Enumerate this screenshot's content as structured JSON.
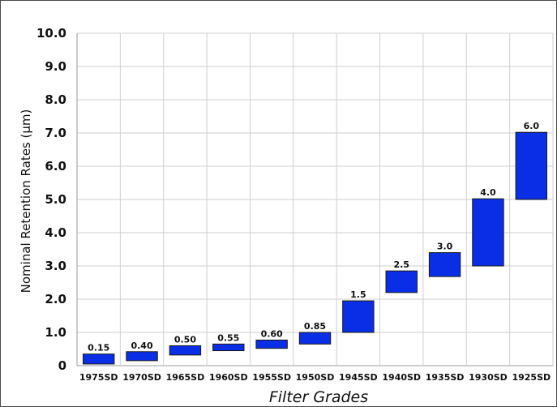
{
  "chart_data": {
    "type": "bar",
    "subtype": "floating-range",
    "title": "",
    "xlabel": "Filter Grades",
    "ylabel": "Nominal Retention Rates (µm)",
    "ylim": [
      0,
      10
    ],
    "y_ticks": [
      "0",
      "1.0",
      "2.0",
      "3.0",
      "4.0",
      "5.0",
      "6.0",
      "7.0",
      "8.0",
      "9.0",
      "10.0"
    ],
    "grid": true,
    "bar_color": "#0a2ee6",
    "categories": [
      "1975SD",
      "1970SD",
      "1965SD",
      "1960SD",
      "1955SD",
      "1950SD",
      "1945SD",
      "1940SD",
      "1935SD",
      "1930SD",
      "1925SD"
    ],
    "ranges": [
      {
        "low": 0.05,
        "high": 0.35
      },
      {
        "low": 0.15,
        "high": 0.42
      },
      {
        "low": 0.32,
        "high": 0.6
      },
      {
        "low": 0.45,
        "high": 0.65
      },
      {
        "low": 0.52,
        "high": 0.77
      },
      {
        "low": 0.65,
        "high": 1.0
      },
      {
        "low": 1.0,
        "high": 1.95
      },
      {
        "low": 2.2,
        "high": 2.85
      },
      {
        "low": 2.68,
        "high": 3.4
      },
      {
        "low": 3.0,
        "high": 5.02
      },
      {
        "low": 5.0,
        "high": 7.02
      }
    ],
    "data_labels": [
      "0.15",
      "0.40",
      "0.50",
      "0.55",
      "0.60",
      "0.85",
      "1.5",
      "2.5",
      "3.0",
      "4.0",
      "6.0"
    ]
  }
}
